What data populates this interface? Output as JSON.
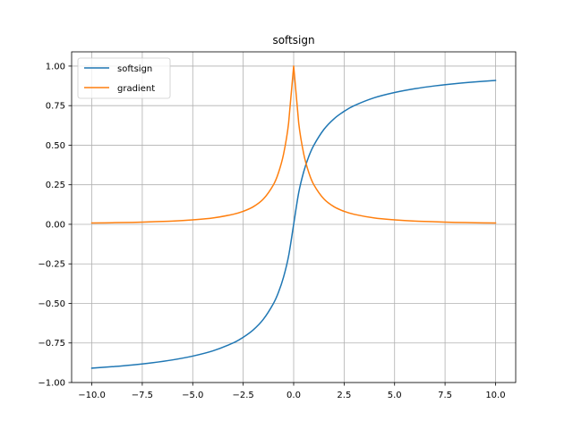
{
  "chart_data": {
    "type": "line",
    "title": "softsign",
    "xlabel": "",
    "ylabel": "",
    "xlim": [
      -11.0,
      11.0
    ],
    "ylim": [
      -1.0,
      1.09
    ],
    "grid": true,
    "legend_position": "top-left",
    "x_ticks": [
      -10.0,
      -7.5,
      -5.0,
      -2.5,
      0.0,
      2.5,
      5.0,
      7.5,
      10.0
    ],
    "x_tick_labels": [
      "−10.0",
      "−7.5",
      "−5.0",
      "−2.5",
      "0.0",
      "2.5",
      "5.0",
      "7.5",
      "10.0"
    ],
    "y_ticks": [
      -1.0,
      -0.75,
      -0.5,
      -0.25,
      0.0,
      0.25,
      0.5,
      0.75,
      1.0
    ],
    "y_tick_labels": [
      "−1.00",
      "−0.75",
      "−0.50",
      "−0.25",
      "0.00",
      "0.25",
      "0.50",
      "0.75",
      "1.00"
    ],
    "x": [
      -10,
      -9,
      -8,
      -7,
      -6,
      -5,
      -4,
      -3,
      -2.5,
      -2,
      -1.5,
      -1,
      -0.75,
      -0.5,
      -0.25,
      0,
      0.25,
      0.5,
      0.75,
      1,
      1.5,
      2,
      2.5,
      3,
      4,
      5,
      6,
      7,
      8,
      9,
      10
    ],
    "series": [
      {
        "name": "softsign",
        "color": "#1f77b4",
        "values": [
          -0.909,
          -0.9,
          -0.889,
          -0.875,
          -0.857,
          -0.833,
          -0.8,
          -0.75,
          -0.714,
          -0.667,
          -0.6,
          -0.5,
          -0.429,
          -0.333,
          -0.2,
          0.0,
          0.2,
          0.333,
          0.429,
          0.5,
          0.6,
          0.667,
          0.714,
          0.75,
          0.8,
          0.833,
          0.857,
          0.875,
          0.889,
          0.9,
          0.909
        ]
      },
      {
        "name": "gradient",
        "color": "#ff7f0e",
        "values": [
          0.008,
          0.01,
          0.012,
          0.016,
          0.02,
          0.028,
          0.04,
          0.063,
          0.082,
          0.111,
          0.16,
          0.25,
          0.327,
          0.444,
          0.64,
          1.0,
          0.64,
          0.444,
          0.327,
          0.25,
          0.16,
          0.111,
          0.082,
          0.063,
          0.04,
          0.028,
          0.02,
          0.016,
          0.012,
          0.01,
          0.008
        ]
      }
    ]
  }
}
